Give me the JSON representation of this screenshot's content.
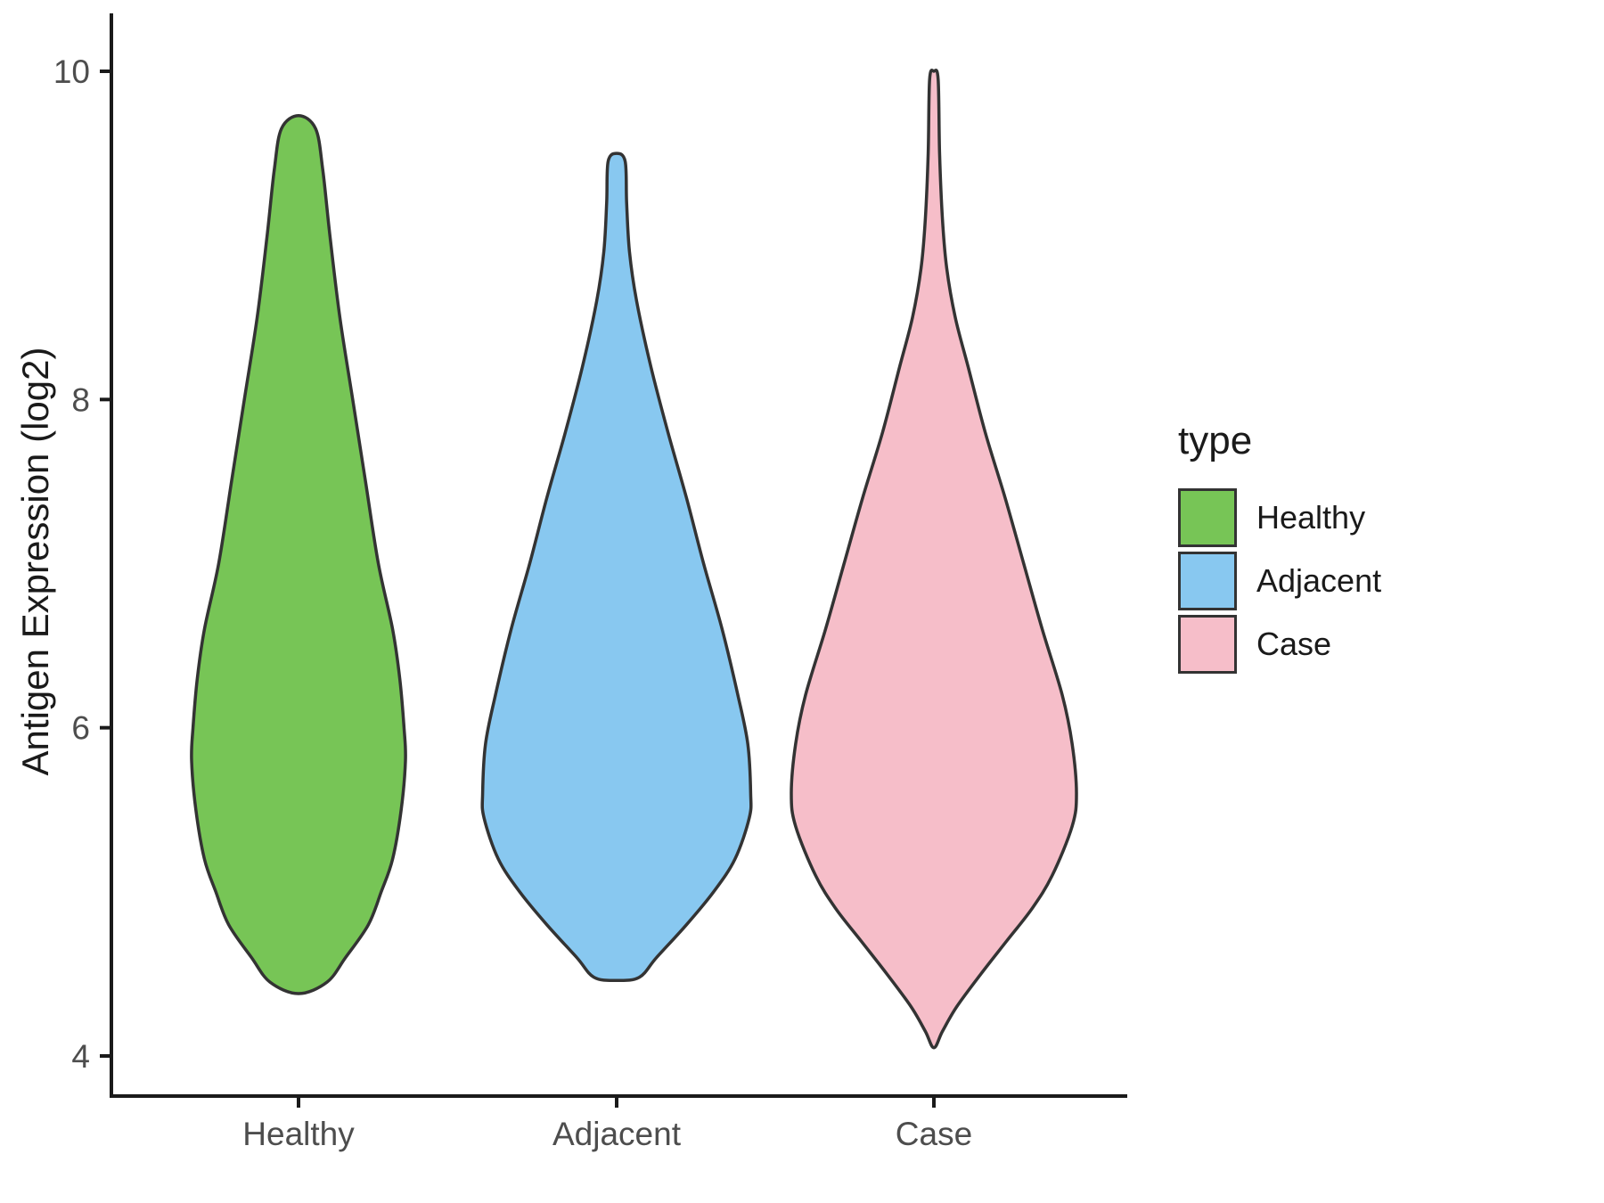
{
  "figure": {
    "background": "#FFFFFF"
  },
  "chart_data": {
    "type": "violin",
    "title": "",
    "xlabel": "",
    "ylabel": "Antigen Expression (log2)",
    "categories": [
      "Healthy",
      "Adjacent",
      "Case"
    ],
    "yticks": [
      4,
      6,
      8,
      10
    ],
    "ylim": [
      3.8,
      10.3
    ],
    "grid": false,
    "outline_color": "#333333",
    "axis_color": "#1A1A1A",
    "tick_label_color": "#4D4D4D",
    "legend": {
      "title": "type",
      "position": "right",
      "items": [
        {
          "label": "Healthy",
          "color": "#77C556"
        },
        {
          "label": "Adjacent",
          "color": "#88C8F0"
        },
        {
          "label": "Case",
          "color": "#F6BEC9"
        }
      ]
    },
    "series": [
      {
        "name": "Healthy",
        "color": "#77C556",
        "min": 4.38,
        "max": 9.73,
        "peak": 5.8,
        "profile": [
          [
            9.73,
            0.0
          ],
          [
            9.65,
            0.12
          ],
          [
            9.4,
            0.17
          ],
          [
            9.0,
            0.22
          ],
          [
            8.5,
            0.29
          ],
          [
            8.0,
            0.38
          ],
          [
            7.5,
            0.47
          ],
          [
            7.0,
            0.56
          ],
          [
            6.6,
            0.66
          ],
          [
            6.3,
            0.71
          ],
          [
            6.0,
            0.74
          ],
          [
            5.8,
            0.75
          ],
          [
            5.5,
            0.72
          ],
          [
            5.2,
            0.66
          ],
          [
            5.0,
            0.58
          ],
          [
            4.8,
            0.49
          ],
          [
            4.6,
            0.33
          ],
          [
            4.45,
            0.2
          ],
          [
            4.38,
            0.0
          ]
        ]
      },
      {
        "name": "Adjacent",
        "color": "#88C8F0",
        "min": 4.46,
        "max": 9.5,
        "peak": 5.6,
        "profile": [
          [
            9.5,
            0.0
          ],
          [
            9.45,
            0.06
          ],
          [
            9.2,
            0.07
          ],
          [
            8.9,
            0.09
          ],
          [
            8.6,
            0.14
          ],
          [
            8.2,
            0.24
          ],
          [
            7.8,
            0.36
          ],
          [
            7.4,
            0.49
          ],
          [
            7.0,
            0.61
          ],
          [
            6.6,
            0.74
          ],
          [
            6.2,
            0.85
          ],
          [
            5.9,
            0.92
          ],
          [
            5.6,
            0.94
          ],
          [
            5.45,
            0.93
          ],
          [
            5.2,
            0.83
          ],
          [
            5.0,
            0.68
          ],
          [
            4.8,
            0.49
          ],
          [
            4.6,
            0.28
          ],
          [
            4.48,
            0.16
          ],
          [
            4.46,
            0.0
          ]
        ]
      },
      {
        "name": "Case",
        "color": "#F6BEC9",
        "min": 4.05,
        "max": 10.0,
        "peak": 5.6,
        "profile": [
          [
            10.0,
            0.0
          ],
          [
            9.95,
            0.03
          ],
          [
            9.5,
            0.04
          ],
          [
            9.1,
            0.06
          ],
          [
            8.8,
            0.09
          ],
          [
            8.5,
            0.15
          ],
          [
            8.2,
            0.24
          ],
          [
            7.8,
            0.36
          ],
          [
            7.4,
            0.5
          ],
          [
            7.0,
            0.63
          ],
          [
            6.6,
            0.76
          ],
          [
            6.2,
            0.9
          ],
          [
            5.9,
            0.97
          ],
          [
            5.6,
            1.0
          ],
          [
            5.4,
            0.97
          ],
          [
            5.1,
            0.83
          ],
          [
            4.9,
            0.69
          ],
          [
            4.7,
            0.51
          ],
          [
            4.5,
            0.33
          ],
          [
            4.3,
            0.16
          ],
          [
            4.15,
            0.06
          ],
          [
            4.05,
            0.0
          ]
        ]
      }
    ]
  }
}
